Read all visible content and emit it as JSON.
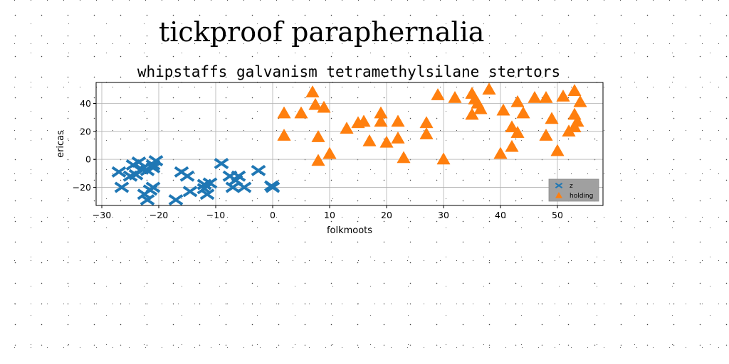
{
  "chart_data": {
    "type": "scatter",
    "suptitle": "tickproof paraphernalia",
    "title": "whipstaffs galvanism tetramethylsilane stertors",
    "xlabel": "folkmoots",
    "ylabel": "ericas",
    "xlim": [
      -31,
      58
    ],
    "ylim": [
      -33,
      55
    ],
    "xticks": [
      -30,
      -20,
      -10,
      0,
      10,
      20,
      30,
      40,
      50
    ],
    "yticks": [
      -20,
      0,
      20,
      40
    ],
    "grid": true,
    "legend_position": "lower-right",
    "series": [
      {
        "name": "z",
        "marker": "x",
        "color": "#1f77b4",
        "points": [
          [
            -27,
            -9
          ],
          [
            -26.5,
            -20
          ],
          [
            -25,
            -12
          ],
          [
            -24.5,
            -4
          ],
          [
            -24,
            -11
          ],
          [
            -23.5,
            -2
          ],
          [
            -23,
            -7
          ],
          [
            -22.5,
            -25
          ],
          [
            -22,
            -29
          ],
          [
            -22,
            -8
          ],
          [
            -21.5,
            -22
          ],
          [
            -21,
            -4
          ],
          [
            -21,
            -6
          ],
          [
            -21,
            -20
          ],
          [
            -20.5,
            -1
          ],
          [
            -17,
            -29
          ],
          [
            -16,
            -9
          ],
          [
            -15,
            -12
          ],
          [
            -14.5,
            -23
          ],
          [
            -12,
            -18
          ],
          [
            -12,
            -21
          ],
          [
            -11.5,
            -25
          ],
          [
            -11,
            -17
          ],
          [
            -9,
            -3
          ],
          [
            -7.5,
            -12
          ],
          [
            -7,
            -20
          ],
          [
            -6.5,
            -15
          ],
          [
            -6,
            -12
          ],
          [
            -5,
            -20
          ],
          [
            -2.5,
            -8
          ],
          [
            -0.2,
            -19
          ],
          [
            0,
            -20
          ]
        ]
      },
      {
        "name": "holding",
        "marker": "triangle",
        "color": "#ff7f0e",
        "points": [
          [
            2,
            17
          ],
          [
            2,
            33
          ],
          [
            5,
            33
          ],
          [
            7,
            48
          ],
          [
            7.5,
            39
          ],
          [
            8,
            -1
          ],
          [
            8,
            16
          ],
          [
            9,
            37
          ],
          [
            10,
            4
          ],
          [
            13,
            22
          ],
          [
            15,
            26
          ],
          [
            16,
            27
          ],
          [
            17,
            13
          ],
          [
            19,
            33
          ],
          [
            19,
            27
          ],
          [
            20,
            12
          ],
          [
            22,
            27
          ],
          [
            22,
            15
          ],
          [
            23,
            1
          ],
          [
            27,
            26
          ],
          [
            27,
            18
          ],
          [
            30,
            0
          ],
          [
            29,
            46
          ],
          [
            32,
            44
          ],
          [
            35,
            32
          ],
          [
            35,
            47
          ],
          [
            35.5,
            43
          ],
          [
            36,
            40
          ],
          [
            36.5,
            36
          ],
          [
            38,
            50
          ],
          [
            40,
            4
          ],
          [
            40.5,
            35
          ],
          [
            42,
            23
          ],
          [
            42,
            9
          ],
          [
            43,
            41
          ],
          [
            43,
            19
          ],
          [
            44,
            33
          ],
          [
            46,
            44
          ],
          [
            48,
            44
          ],
          [
            48,
            17
          ],
          [
            49,
            29
          ],
          [
            50,
            6
          ],
          [
            51,
            45
          ],
          [
            52,
            20
          ],
          [
            53,
            49
          ],
          [
            53,
            23
          ],
          [
            53,
            32
          ],
          [
            53.5,
            27
          ],
          [
            54,
            41
          ]
        ]
      }
    ]
  }
}
